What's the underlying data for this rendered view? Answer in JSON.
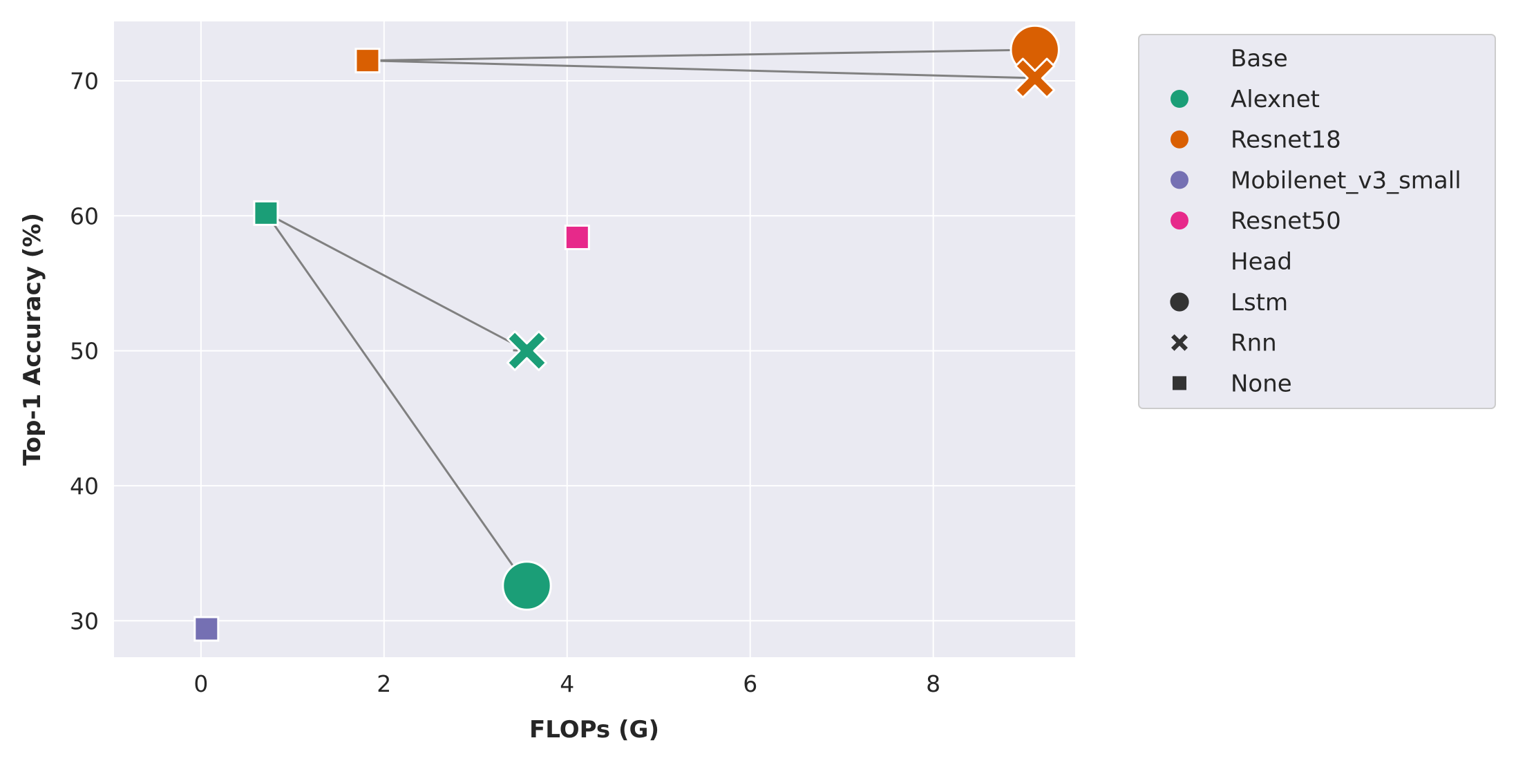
{
  "chart_data": {
    "type": "scatter",
    "title": "",
    "xlabel": "FLOPs (G)",
    "ylabel": "Top-1 Accuracy (%)",
    "xlim": [
      -0.95,
      9.55
    ],
    "ylim": [
      27.3,
      74.4
    ],
    "xticks": [
      0,
      2,
      4,
      6,
      8
    ],
    "yticks": [
      30,
      40,
      50,
      60,
      70
    ],
    "grid": true,
    "legend_position": "outside-right",
    "colors": {
      "Alexnet": "#1b9e77",
      "Resnet18": "#d95f02",
      "Mobilenet_v3_small": "#7570b3",
      "Resnet50": "#e7298a",
      "plot_background": "#eaeaf2",
      "grid": "#ffffff",
      "arrow": "#808080"
    },
    "points": [
      {
        "base": "Alexnet",
        "head": "None",
        "x": 0.71,
        "y": 60.2
      },
      {
        "base": "Alexnet",
        "head": "Rnn",
        "x": 3.56,
        "y": 50.0
      },
      {
        "base": "Alexnet",
        "head": "Lstm",
        "x": 3.56,
        "y": 32.6
      },
      {
        "base": "Resnet18",
        "head": "None",
        "x": 1.82,
        "y": 71.5
      },
      {
        "base": "Resnet18",
        "head": "Lstm",
        "x": 9.11,
        "y": 72.3
      },
      {
        "base": "Resnet18",
        "head": "Rnn",
        "x": 9.11,
        "y": 70.2
      },
      {
        "base": "Mobilenet_v3_small",
        "head": "None",
        "x": 0.06,
        "y": 29.4
      },
      {
        "base": "Resnet50",
        "head": "None",
        "x": 4.11,
        "y": 58.4
      }
    ],
    "arrows": [
      {
        "from": [
          0.71,
          60.2
        ],
        "to": [
          3.56,
          50.0
        ]
      },
      {
        "from": [
          0.71,
          60.2
        ],
        "to": [
          3.56,
          32.6
        ]
      },
      {
        "from": [
          1.82,
          71.5
        ],
        "to": [
          9.11,
          72.3
        ]
      },
      {
        "from": [
          1.82,
          71.5
        ],
        "to": [
          9.11,
          70.2
        ]
      }
    ],
    "legend": {
      "base_title": "Base",
      "bases": [
        "Alexnet",
        "Resnet18",
        "Mobilenet_v3_small",
        "Resnet50"
      ],
      "head_title": "Head",
      "heads": [
        "Lstm",
        "Rnn",
        "None"
      ]
    }
  }
}
